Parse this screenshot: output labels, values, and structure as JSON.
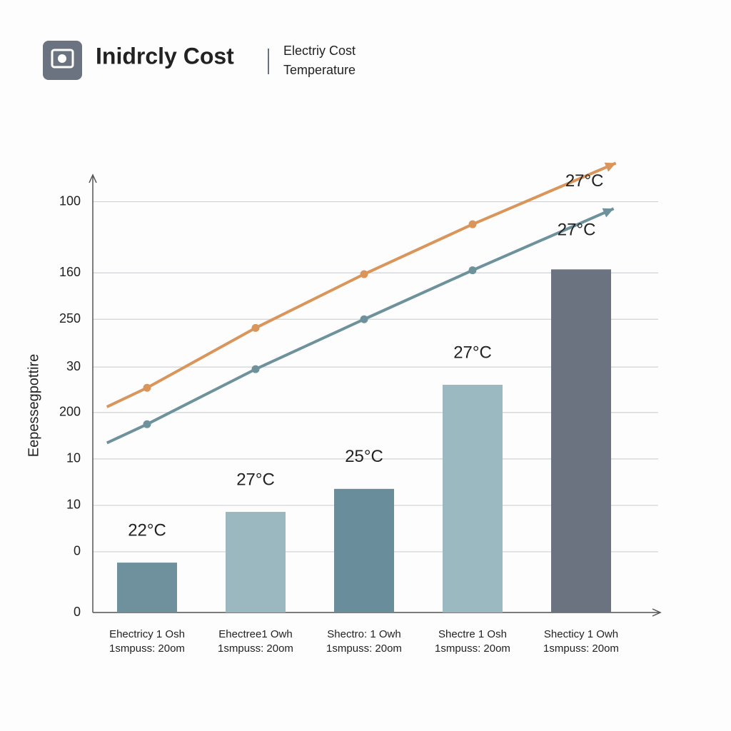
{
  "header": {
    "title": "Inidrcly Cost",
    "legend": [
      "Electriy Cost",
      "Temperature"
    ]
  },
  "chart_data": {
    "type": "bar",
    "ylabel": "Eepessegpottire",
    "categories": [
      "Ehectricy 1 Osh",
      "Ehectree1 Owh",
      "Shectro: 1 Owh",
      "Shectre 1 Osh",
      "Shecticy 1 Owh"
    ],
    "category_sublabels": [
      "1smpuss: 20om",
      "1smpuss: 20om",
      "1smpuss: 20om",
      "1smpuss: 20om",
      "1smpuss: 20om"
    ],
    "values": [
      11.5,
      23.2,
      28.5,
      52.5,
      79.1
    ],
    "colors": [
      "#6f919d",
      "#9bb8c0",
      "#698d9b",
      "#9bb9c1",
      "#6b7280"
    ],
    "bar_labels": [
      "22°C",
      "27°C",
      "25°C",
      "27°C",
      null
    ],
    "ylim": [
      0,
      105
    ],
    "yticks": [
      0,
      {
        "value": 14.0,
        "label": "0"
      },
      {
        "value": 24.7,
        "label": "10"
      },
      {
        "value": 35.4,
        "label": "10"
      },
      {
        "value": 46.1,
        "label": "200"
      },
      {
        "value": 56.6,
        "label": "30"
      },
      {
        "value": 67.6,
        "label": "250"
      },
      {
        "value": 78.3,
        "label": "160"
      },
      {
        "value": 94.7,
        "label": "100"
      }
    ],
    "grid": true,
    "lines": [
      {
        "color": "#d9955a",
        "x": [
          -0.37,
          0,
          1,
          2,
          3,
          4.32
        ],
        "values": [
          47.4,
          51.8,
          65.6,
          78.0,
          89.5,
          103.6
        ],
        "end_label": "27°C"
      },
      {
        "color": "#6e929c",
        "x": [
          -0.37,
          0,
          1,
          2,
          3,
          4.3
        ],
        "values": [
          39.1,
          43.4,
          56.1,
          67.6,
          78.9,
          93.1
        ],
        "end_label": "27°C"
      }
    ]
  }
}
